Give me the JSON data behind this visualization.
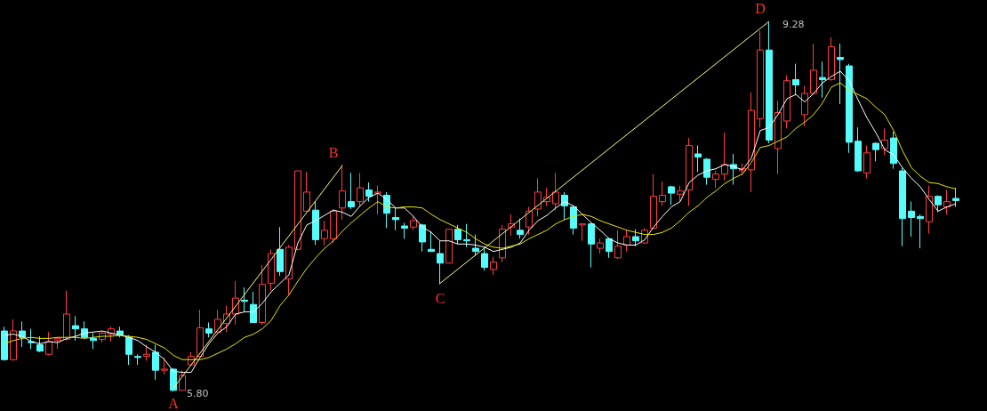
{
  "chart_data": {
    "type": "candlestick",
    "marker": "none",
    "categories": [
      null,
      null,
      null,
      null,
      null,
      null,
      null,
      null,
      null,
      null,
      null,
      null,
      null,
      null,
      null,
      null,
      null,
      null,
      null,
      null,
      null,
      null,
      null,
      null,
      null,
      null,
      null,
      null,
      null,
      null,
      null,
      null,
      null,
      null,
      null,
      null,
      null,
      null,
      null,
      null,
      null,
      null,
      null,
      null,
      null,
      null,
      null,
      null,
      null,
      null,
      null,
      null,
      null,
      null,
      null,
      null,
      null,
      null,
      null,
      null,
      null,
      null,
      null,
      null,
      null,
      null,
      null,
      null,
      null,
      null,
      null,
      null,
      null,
      null,
      null,
      null,
      null,
      null,
      null,
      null,
      null,
      null,
      null,
      null,
      null,
      null,
      null,
      null,
      null,
      null,
      null,
      null,
      null,
      null,
      null,
      null,
      null,
      null,
      null,
      null,
      null,
      null,
      null,
      null,
      null,
      null,
      null,
      null
    ],
    "ohlc": [
      [
        6.37,
        6.41,
        6.09,
        6.1
      ],
      [
        6.1,
        6.48,
        6.09,
        6.37
      ],
      [
        6.37,
        6.46,
        6.22,
        6.31
      ],
      [
        6.27,
        6.39,
        6.2,
        6.26
      ],
      [
        6.24,
        6.32,
        6.17,
        6.18
      ],
      [
        6.15,
        6.36,
        6.14,
        6.27
      ],
      [
        6.28,
        6.31,
        6.2,
        6.3
      ],
      [
        6.29,
        6.75,
        6.28,
        6.53
      ],
      [
        6.42,
        6.51,
        6.28,
        6.39
      ],
      [
        6.39,
        6.46,
        6.31,
        6.31
      ],
      [
        6.3,
        6.35,
        6.2,
        6.28
      ],
      [
        6.29,
        6.36,
        6.26,
        6.35
      ],
      [
        6.34,
        6.41,
        6.27,
        6.39
      ],
      [
        6.37,
        6.41,
        6.31,
        6.33
      ],
      [
        6.31,
        6.33,
        6.05,
        6.15
      ],
      [
        6.13,
        6.15,
        6.05,
        6.12
      ],
      [
        6.13,
        6.24,
        6.09,
        6.15
      ],
      [
        6.17,
        6.24,
        5.91,
        6.0
      ],
      [
        6.0,
        6.12,
        5.96,
        6.01
      ],
      [
        6.01,
        6.02,
        5.8,
        5.81
      ],
      [
        5.81,
        6.0,
        5.81,
        5.95
      ],
      [
        6.05,
        6.17,
        6.05,
        6.13
      ],
      [
        6.13,
        6.57,
        6.13,
        6.4
      ],
      [
        6.39,
        6.45,
        6.31,
        6.35
      ],
      [
        6.36,
        6.57,
        6.35,
        6.48
      ],
      [
        6.44,
        6.61,
        6.36,
        6.53
      ],
      [
        6.53,
        6.84,
        6.43,
        6.68
      ],
      [
        6.66,
        6.78,
        6.55,
        6.65
      ],
      [
        6.62,
        6.74,
        6.45,
        6.45
      ],
      [
        6.45,
        6.99,
        6.43,
        6.81
      ],
      [
        6.82,
        7.14,
        6.75,
        7.1
      ],
      [
        7.14,
        7.35,
        6.89,
        6.93
      ],
      [
        6.86,
        7.18,
        6.71,
        7.16
      ],
      [
        7.14,
        7.88,
        7.13,
        7.88
      ],
      [
        7.5,
        7.87,
        7.5,
        7.68
      ],
      [
        7.51,
        7.59,
        7.18,
        7.23
      ],
      [
        7.24,
        7.41,
        7.18,
        7.32
      ],
      [
        7.24,
        7.52,
        7.2,
        7.5
      ],
      [
        7.53,
        7.94,
        7.42,
        7.69
      ],
      [
        7.59,
        7.86,
        7.52,
        7.54
      ],
      [
        7.59,
        7.86,
        7.54,
        7.72
      ],
      [
        7.7,
        7.77,
        7.59,
        7.64
      ],
      [
        7.67,
        7.74,
        7.47,
        7.68
      ],
      [
        7.65,
        7.68,
        7.34,
        7.48
      ],
      [
        7.44,
        7.53,
        7.32,
        7.42
      ],
      [
        7.36,
        7.39,
        7.24,
        7.34
      ],
      [
        7.35,
        7.45,
        7.32,
        7.41
      ],
      [
        7.37,
        7.38,
        7.12,
        7.21
      ],
      [
        7.14,
        7.31,
        7.12,
        7.12
      ],
      [
        7.1,
        7.22,
        6.81,
        7.01
      ],
      [
        7.01,
        7.33,
        7.01,
        7.33
      ],
      [
        7.33,
        7.37,
        7.19,
        7.23
      ],
      [
        7.23,
        7.38,
        7.16,
        7.22
      ],
      [
        7.15,
        7.28,
        7.08,
        7.12
      ],
      [
        7.1,
        7.16,
        6.94,
        6.97
      ],
      [
        6.95,
        7.07,
        6.9,
        7.02
      ],
      [
        7.06,
        7.37,
        7.02,
        7.33
      ],
      [
        7.35,
        7.47,
        7.27,
        7.38
      ],
      [
        7.32,
        7.43,
        7.24,
        7.28
      ],
      [
        7.35,
        7.54,
        7.28,
        7.5
      ],
      [
        7.52,
        7.81,
        7.45,
        7.68
      ],
      [
        7.59,
        7.72,
        7.55,
        7.63
      ],
      [
        7.57,
        7.86,
        7.51,
        7.68
      ],
      [
        7.65,
        7.68,
        7.42,
        7.55
      ],
      [
        7.54,
        7.55,
        7.28,
        7.34
      ],
      [
        7.37,
        7.38,
        7.22,
        7.38
      ],
      [
        7.38,
        7.39,
        6.97,
        7.19
      ],
      [
        7.15,
        7.24,
        7.1,
        7.2
      ],
      [
        7.24,
        7.25,
        7.06,
        7.12
      ],
      [
        7.06,
        7.32,
        7.05,
        7.17
      ],
      [
        7.18,
        7.32,
        7.12,
        7.26
      ],
      [
        7.26,
        7.33,
        7.17,
        7.22
      ],
      [
        7.2,
        7.34,
        7.19,
        7.32
      ],
      [
        7.34,
        7.85,
        7.33,
        7.64
      ],
      [
        7.59,
        7.78,
        7.55,
        7.65
      ],
      [
        7.73,
        7.74,
        7.56,
        7.67
      ],
      [
        7.66,
        7.74,
        7.59,
        7.69
      ],
      [
        7.7,
        8.19,
        7.55,
        8.12
      ],
      [
        8.04,
        8.12,
        7.87,
        8.01
      ],
      [
        7.99,
        8.0,
        7.75,
        7.82
      ],
      [
        7.8,
        7.88,
        7.72,
        7.85
      ],
      [
        7.85,
        8.24,
        7.79,
        7.94
      ],
      [
        7.94,
        8.04,
        7.75,
        7.9
      ],
      [
        7.88,
        7.95,
        7.84,
        7.9
      ],
      [
        7.89,
        8.62,
        7.68,
        8.45
      ],
      [
        8.37,
        9.2,
        8.29,
        9.02
      ],
      [
        9.02,
        9.28,
        8.14,
        8.17
      ],
      [
        8.09,
        8.54,
        7.85,
        8.43
      ],
      [
        8.35,
        8.78,
        8.28,
        8.73
      ],
      [
        8.74,
        8.89,
        8.6,
        8.69
      ],
      [
        8.41,
        8.68,
        8.3,
        8.61
      ],
      [
        8.61,
        9.08,
        8.6,
        8.83
      ],
      [
        8.76,
        8.91,
        8.57,
        8.74
      ],
      [
        8.74,
        9.14,
        8.73,
        9.05
      ],
      [
        8.95,
        9.08,
        8.51,
        8.93
      ],
      [
        8.87,
        8.89,
        8.05,
        8.15
      ],
      [
        8.16,
        8.29,
        7.87,
        7.88
      ],
      [
        7.86,
        8.12,
        7.81,
        8.05
      ],
      [
        8.14,
        8.15,
        7.97,
        8.08
      ],
      [
        8.09,
        8.28,
        8.03,
        8.17
      ],
      [
        8.19,
        8.25,
        7.9,
        7.95
      ],
      [
        7.88,
        7.91,
        7.17,
        7.43
      ],
      [
        7.5,
        7.59,
        7.26,
        7.44
      ],
      [
        7.45,
        7.47,
        7.15,
        7.43
      ],
      [
        7.4,
        7.74,
        7.29,
        7.64
      ],
      [
        7.64,
        7.65,
        7.49,
        7.56
      ],
      [
        7.54,
        7.7,
        7.47,
        7.59
      ],
      [
        7.62,
        7.72,
        7.54,
        7.6
      ]
    ],
    "colors": [
      "#54fcfc",
      "#ff3c3c",
      "#54fcfc",
      "#54fcfc",
      "#54fcfc",
      "#ff3c3c",
      "#ff3c3c",
      "#ff3c3c",
      "#54fcfc",
      "#54fcfc",
      "#54fcfc",
      "#ff3c3c",
      "#ff3c3c",
      "#54fcfc",
      "#54fcfc",
      "#54fcfc",
      "#ff3c3c",
      "#54fcfc",
      "#ff3c3c",
      "#54fcfc",
      "#ff3c3c",
      "#ff3c3c",
      "#ff3c3c",
      "#54fcfc",
      "#ff3c3c",
      "#ff3c3c",
      "#ff3c3c",
      "#54fcfc",
      "#54fcfc",
      "#ff3c3c",
      "#ff3c3c",
      "#54fcfc",
      "#ff3c3c",
      "#ff3c3c",
      "#ff3c3c",
      "#54fcfc",
      "#ff3c3c",
      "#ff3c3c",
      "#ff3c3c",
      "#54fcfc",
      "#ff3c3c",
      "#54fcfc",
      "#ff3c3c",
      "#54fcfc",
      "#54fcfc",
      "#54fcfc",
      "#ff3c3c",
      "#54fcfc",
      "#54fcfc",
      "#54fcfc",
      "#ff3c3c",
      "#54fcfc",
      "#54fcfc",
      "#54fcfc",
      "#54fcfc",
      "#ff3c3c",
      "#ff3c3c",
      "#ff3c3c",
      "#54fcfc",
      "#ff3c3c",
      "#ff3c3c",
      "#ff3c3c",
      "#ff3c3c",
      "#54fcfc",
      "#54fcfc",
      "#ff3c3c",
      "#54fcfc",
      "#ff3c3c",
      "#54fcfc",
      "#ff3c3c",
      "#ff3c3c",
      "#54fcfc",
      "#ff3c3c",
      "#ff3c3c",
      "#ff3c3c",
      "#54fcfc",
      "#ff3c3c",
      "#ff3c3c",
      "#54fcfc",
      "#54fcfc",
      "#ff3c3c",
      "#ff3c3c",
      "#54fcfc",
      "#ff3c3c",
      "#ff3c3c",
      "#ff3c3c",
      "#54fcfc",
      "#ff3c3c",
      "#ff3c3c",
      "#54fcfc",
      "#ff3c3c",
      "#ff3c3c",
      "#54fcfc",
      "#ff3c3c",
      "#54fcfc",
      "#54fcfc",
      "#54fcfc",
      "#ff3c3c",
      "#54fcfc",
      "#ff3c3c",
      "#54fcfc",
      "#54fcfc",
      "#54fcfc",
      "#54fcfc",
      "#ff3c3c",
      "#54fcfc",
      "#ff3c3c",
      "#54fcfc"
    ],
    "series": [
      {
        "type": "line",
        "color": "#ffffff",
        "values": [
          6.33,
          6.34,
          6.32,
          6.27,
          6.25,
          6.27,
          6.26,
          6.3,
          6.32,
          6.35,
          6.36,
          6.37,
          6.35,
          6.33,
          6.31,
          6.28,
          6.22,
          6.17,
          6.1,
          5.99,
          5.98,
          5.98,
          6.12,
          6.25,
          6.35,
          6.41,
          6.53,
          6.55,
          6.55,
          6.63,
          6.74,
          6.82,
          6.9,
          7.2,
          7.37,
          7.41,
          7.46,
          7.51,
          7.49,
          7.45,
          7.55,
          7.63,
          7.67,
          7.61,
          7.53,
          7.53,
          7.45,
          7.35,
          7.3,
          7.22,
          7.22,
          7.19,
          7.19,
          7.18,
          7.16,
          7.12,
          7.14,
          7.16,
          7.2,
          7.32,
          7.41,
          7.46,
          7.53,
          7.59,
          7.55,
          7.47,
          7.39,
          7.32,
          7.24,
          7.2,
          7.18,
          7.18,
          7.23,
          7.35,
          7.45,
          7.54,
          7.59,
          7.77,
          7.84,
          7.88,
          7.9,
          7.94,
          7.92,
          7.89,
          8.0,
          8.26,
          8.29,
          8.41,
          8.56,
          8.6,
          8.53,
          8.61,
          8.71,
          8.77,
          8.82,
          8.73,
          8.55,
          8.38,
          8.24,
          8.08,
          8.03,
          7.91,
          7.81,
          7.73,
          7.61,
          7.5,
          7.54,
          7.57
        ]
      },
      {
        "type": "line",
        "color": "#e6e600",
        "values": [
          6.25,
          6.28,
          6.3,
          6.31,
          6.3,
          6.3,
          6.31,
          6.31,
          6.31,
          6.3,
          6.31,
          6.32,
          6.32,
          6.33,
          6.32,
          6.31,
          6.29,
          6.25,
          6.21,
          6.14,
          6.1,
          6.1,
          6.1,
          6.12,
          6.16,
          6.2,
          6.25,
          6.31,
          6.34,
          6.39,
          6.47,
          6.61,
          6.71,
          6.84,
          6.96,
          7.06,
          7.15,
          7.22,
          7.31,
          7.39,
          7.46,
          7.53,
          7.59,
          7.54,
          7.53,
          7.54,
          7.54,
          7.53,
          7.47,
          7.42,
          7.38,
          7.34,
          7.3,
          7.24,
          7.19,
          7.16,
          7.15,
          7.17,
          7.19,
          7.24,
          7.28,
          7.32,
          7.38,
          7.42,
          7.45,
          7.47,
          7.45,
          7.41,
          7.38,
          7.35,
          7.32,
          7.3,
          7.28,
          7.28,
          7.3,
          7.34,
          7.41,
          7.49,
          7.55,
          7.63,
          7.69,
          7.76,
          7.81,
          7.85,
          7.96,
          8.1,
          8.12,
          8.16,
          8.2,
          8.28,
          8.34,
          8.41,
          8.52,
          8.67,
          8.71,
          8.64,
          8.6,
          8.56,
          8.48,
          8.41,
          8.26,
          8.07,
          7.91,
          7.83,
          7.77,
          7.76,
          7.73,
          7.71
        ]
      },
      {
        "type": "line",
        "color": "#ffff80",
        "values": [
          null,
          null,
          null,
          null,
          null,
          null,
          null,
          null,
          null,
          null,
          null,
          null,
          null,
          null,
          null,
          null,
          null,
          null,
          null,
          5.83,
          null,
          null,
          null,
          null,
          null,
          null,
          null,
          null,
          null,
          null,
          null,
          null,
          null,
          null,
          null,
          null,
          null,
          null,
          7.93,
          null,
          null,
          null,
          null,
          null,
          null,
          null,
          null,
          null,
          null,
          null,
          null,
          null,
          null,
          null,
          null,
          null,
          null,
          null,
          null,
          null,
          null,
          null,
          null,
          null,
          null,
          null,
          null,
          null,
          null,
          null,
          null,
          null,
          null,
          null,
          null,
          null,
          null,
          null,
          null,
          null,
          null,
          null,
          null,
          null,
          null,
          null,
          null,
          null,
          null,
          null,
          null,
          null,
          null,
          null,
          null,
          null,
          null,
          null,
          null,
          null,
          null,
          null,
          null,
          null,
          null,
          null,
          null,
          null
        ]
      },
      {
        "type": "line",
        "color": "#ffff80",
        "values": [
          null,
          null,
          null,
          null,
          null,
          null,
          null,
          null,
          null,
          null,
          null,
          null,
          null,
          null,
          null,
          null,
          null,
          null,
          null,
          null,
          null,
          null,
          null,
          null,
          null,
          null,
          null,
          null,
          null,
          null,
          null,
          null,
          null,
          null,
          null,
          null,
          null,
          null,
          null,
          null,
          null,
          null,
          null,
          null,
          null,
          null,
          null,
          null,
          null,
          6.82,
          null,
          null,
          null,
          null,
          null,
          null,
          null,
          null,
          null,
          null,
          null,
          null,
          null,
          null,
          null,
          null,
          null,
          null,
          null,
          null,
          null,
          null,
          null,
          null,
          null,
          null,
          null,
          null,
          null,
          null,
          null,
          null,
          null,
          null,
          null,
          null,
          9.29,
          null,
          null,
          null,
          null,
          null,
          null,
          null,
          null,
          null,
          null,
          null,
          null,
          null,
          null,
          null,
          null,
          null,
          null,
          null,
          null,
          null
        ]
      }
    ],
    "annotations": [
      "A",
      "B",
      "C",
      "D",
      "9.28",
      "5.80"
    ]
  }
}
